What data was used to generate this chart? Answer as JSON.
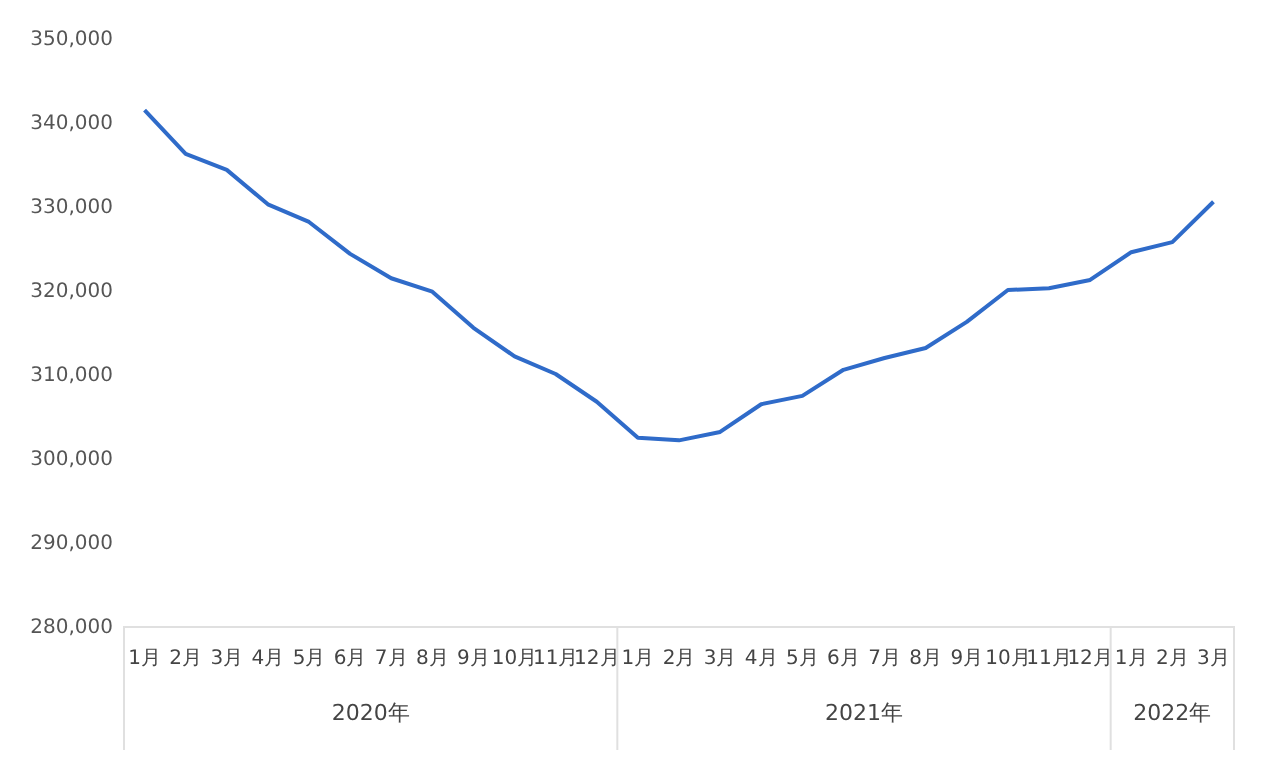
{
  "chart_data": {
    "type": "line",
    "categories": [
      "1月",
      "2月",
      "3月",
      "4月",
      "5月",
      "6月",
      "7月",
      "8月",
      "9月",
      "10月",
      "11月",
      "12月",
      "1月",
      "2月",
      "3月",
      "4月",
      "5月",
      "6月",
      "7月",
      "8月",
      "9月",
      "10月",
      "11月",
      "12月",
      "1月",
      "2月",
      "3月"
    ],
    "values": [
      341400,
      336200,
      334300,
      330200,
      328100,
      324300,
      321400,
      319800,
      315500,
      312100,
      310000,
      306700,
      302400,
      302100,
      303100,
      306400,
      307400,
      310500,
      311900,
      313100,
      316200,
      320000,
      320200,
      321200,
      324500,
      325700,
      330500
    ],
    "color": "#2f6bc9",
    "ylim": [
      280000,
      350000
    ],
    "yticks": [
      {
        "value": 280000,
        "label": "280,000"
      },
      {
        "value": 290000,
        "label": "290,000"
      },
      {
        "value": 300000,
        "label": "300,000"
      },
      {
        "value": 310000,
        "label": "310,000"
      },
      {
        "value": 320000,
        "label": "320,000"
      },
      {
        "value": 330000,
        "label": "330,000"
      },
      {
        "value": 340000,
        "label": "340,000"
      },
      {
        "value": 350000,
        "label": "350,000"
      }
    ],
    "annotations": [
      "2020年",
      "2021年",
      "2022年"
    ]
  }
}
